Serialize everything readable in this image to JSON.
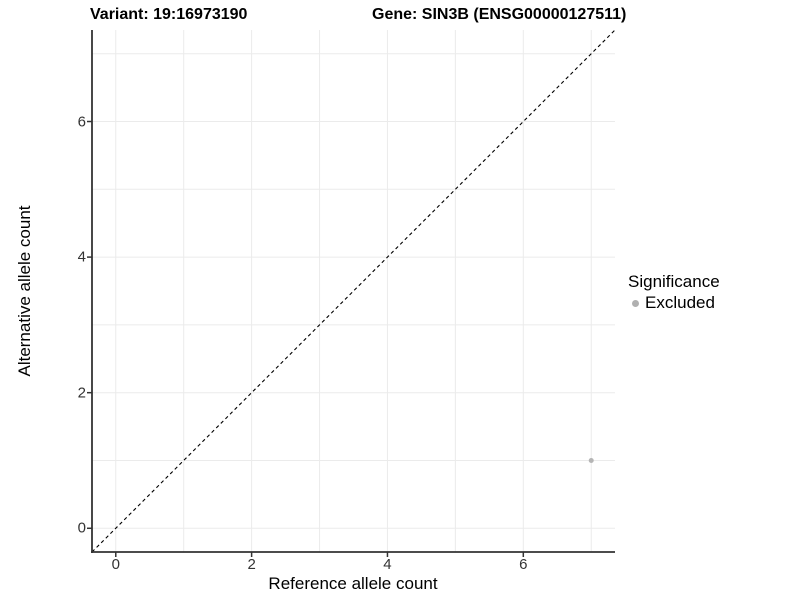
{
  "figure": {
    "title_left": "Variant: 19:16973190",
    "title_right": "Gene: SIN3B (ENSG00000127511)"
  },
  "chart_data": {
    "type": "scatter",
    "title": "Variant: 19:16973190    Gene: SIN3B (ENSG00000127511)",
    "xlabel": "Reference allele count",
    "ylabel": "Alternative allele count",
    "xlim": [
      -0.35,
      7.35
    ],
    "ylim": [
      -0.35,
      7.35
    ],
    "x_ticks": [
      0,
      2,
      4,
      6
    ],
    "y_ticks": [
      0,
      2,
      4,
      6
    ],
    "grid": "on",
    "gridlines_x": [
      0,
      1,
      2,
      3,
      4,
      5,
      6,
      7
    ],
    "gridlines_y": [
      0,
      1,
      2,
      3,
      4,
      5,
      6,
      7
    ],
    "identity_line": {
      "style": "dashed",
      "from": [
        -0.35,
        -0.35
      ],
      "to": [
        7.35,
        7.35
      ]
    },
    "series": [
      {
        "name": "Excluded",
        "color": "#b5b5b5",
        "marker_radius": 2.5,
        "points": [
          [
            7,
            1
          ]
        ]
      }
    ],
    "legend": {
      "title": "Significance",
      "position": "right",
      "entries": [
        {
          "label": "Excluded",
          "color": "#b0b0b0"
        }
      ]
    }
  },
  "colors": {
    "background": "#ffffff",
    "grid": "#ebebeb",
    "axis_line": "#333333",
    "identity_line": "#000000",
    "tick_label": "#333333",
    "text": "#000000"
  }
}
